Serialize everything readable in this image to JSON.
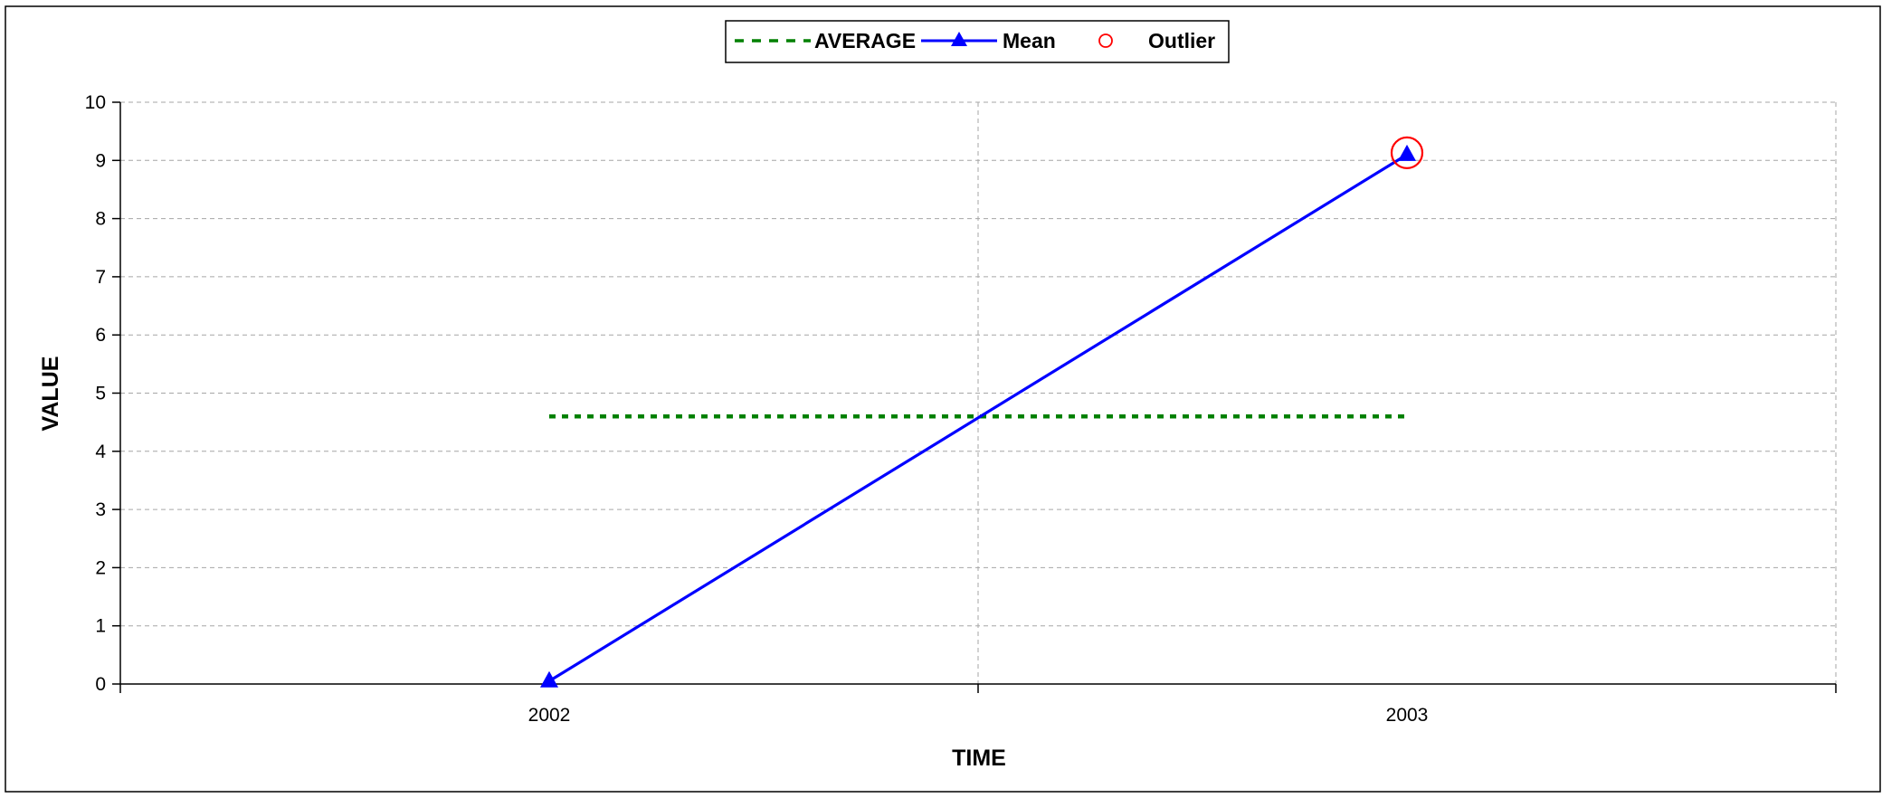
{
  "chart_data": {
    "type": "line",
    "categories": [
      "2002",
      "2003"
    ],
    "xlabel": "TIME",
    "ylabel": "VALUE",
    "ylim": [
      0,
      10
    ],
    "yticks": [
      0,
      1,
      2,
      3,
      4,
      5,
      6,
      7,
      8,
      9,
      10
    ],
    "grid": true,
    "legend_position": "top-center",
    "series": [
      {
        "name": "AVERAGE",
        "values": [
          4.6,
          4.6
        ],
        "style": "dotted",
        "color": "#008000"
      },
      {
        "name": "Mean",
        "values": [
          0.05,
          9.1
        ],
        "marker": "triangle",
        "color": "#0000ff"
      },
      {
        "name": "Outlier",
        "values": [
          null,
          9.1
        ],
        "marker": "open-circle",
        "color": "#ff0000"
      }
    ]
  }
}
